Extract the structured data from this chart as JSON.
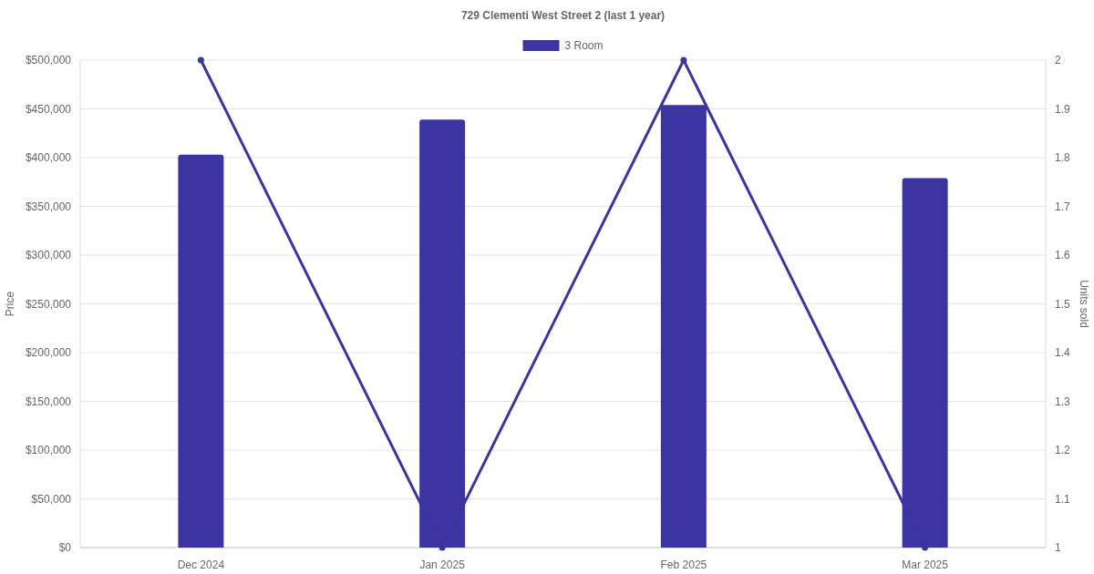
{
  "chart_data": {
    "type": "bar",
    "title": "729 Clementi West Street 2 (last 1 year)",
    "ylabel": "Price",
    "y2label": "Units sold",
    "categories": [
      "Dec 2024",
      "Jan 2025",
      "Feb 2025",
      "Mar 2025"
    ],
    "series": [
      {
        "name": "3 Room",
        "color": "#3a35a0",
        "values": [
          403000,
          439000,
          454000,
          379000
        ]
      },
      {
        "type": "line",
        "axis": "y2",
        "color": "#3a35a0",
        "values": [
          2,
          1,
          2,
          1
        ],
        "marker": "circle"
      }
    ],
    "ylim": [
      0,
      500000
    ],
    "yticks": [
      {
        "value": 0,
        "label": "$0"
      },
      {
        "value": 50000,
        "label": "$50,000"
      },
      {
        "value": 100000,
        "label": "$100,000"
      },
      {
        "value": 150000,
        "label": "$150,000"
      },
      {
        "value": 200000,
        "label": "$200,000"
      },
      {
        "value": 250000,
        "label": "$250,000"
      },
      {
        "value": 300000,
        "label": "$300,000"
      },
      {
        "value": 350000,
        "label": "$350,000"
      },
      {
        "value": 400000,
        "label": "$400,000"
      },
      {
        "value": 450000,
        "label": "$450,000"
      },
      {
        "value": 500000,
        "label": "$500,000"
      }
    ],
    "y2lim": [
      1,
      2
    ],
    "y2ticks": [
      1,
      1.1,
      1.2,
      1.3,
      1.4,
      1.5,
      1.6,
      1.7,
      1.8,
      1.9,
      2
    ],
    "grid": "y",
    "legend": "top"
  }
}
